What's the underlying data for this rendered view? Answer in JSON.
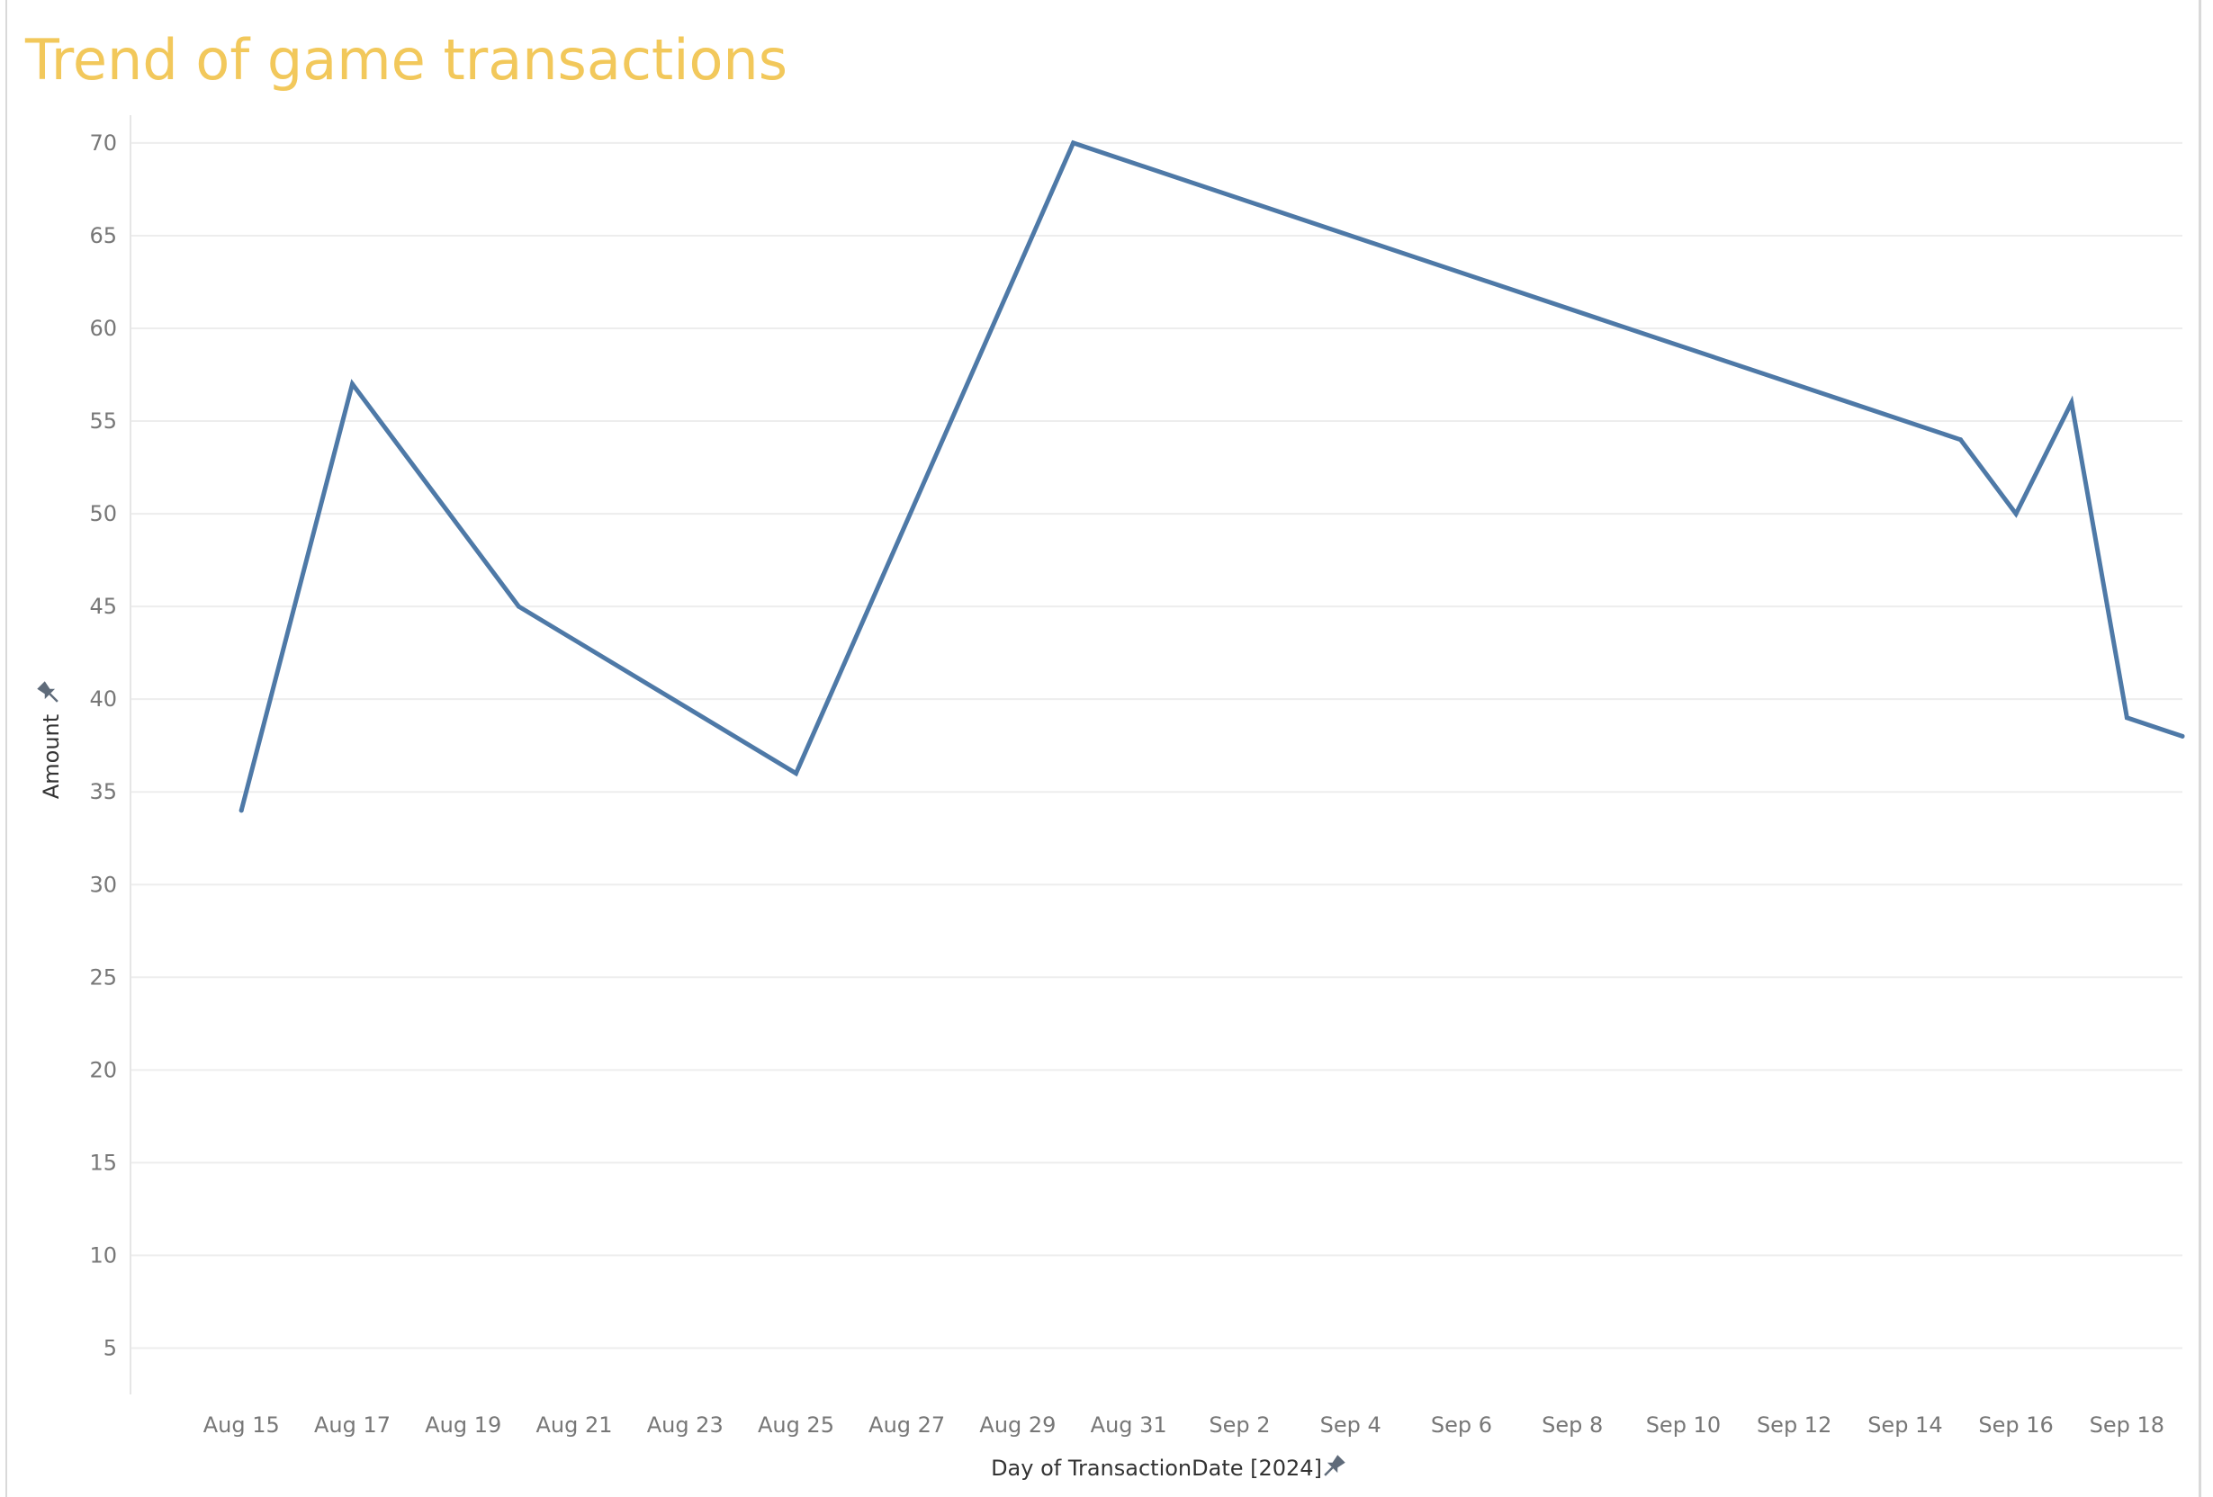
{
  "chart_data": {
    "type": "line",
    "title": "Trend of game transactions",
    "xlabel": "Day of TransactionDate [2024]",
    "ylabel": "Amount",
    "x_tick_labels": [
      "Aug 15",
      "Aug 17",
      "Aug 19",
      "Aug 21",
      "Aug 23",
      "Aug 25",
      "Aug 27",
      "Aug 29",
      "Aug 31",
      "Sep 2",
      "Sep 4",
      "Sep 6",
      "Sep 8",
      "Sep 10",
      "Sep 12",
      "Sep 14",
      "Sep 16",
      "Sep 18"
    ],
    "y_ticks": [
      5,
      10,
      15,
      20,
      25,
      30,
      35,
      40,
      45,
      50,
      55,
      60,
      65,
      70
    ],
    "ylim": [
      2.5,
      71.5
    ],
    "xlim": [
      "2024-08-13",
      "2024-09-19"
    ],
    "grid": true,
    "series": [
      {
        "x": [
          "2024-08-15",
          "2024-08-17",
          "2024-08-20",
          "2024-08-25",
          "2024-08-30",
          "2024-09-15",
          "2024-09-16",
          "2024-09-17",
          "2024-09-18",
          "2024-09-19"
        ],
        "values": [
          34,
          57,
          45,
          36,
          70,
          54,
          50,
          56,
          39,
          38
        ],
        "color": "#4e79a7"
      }
    ]
  }
}
